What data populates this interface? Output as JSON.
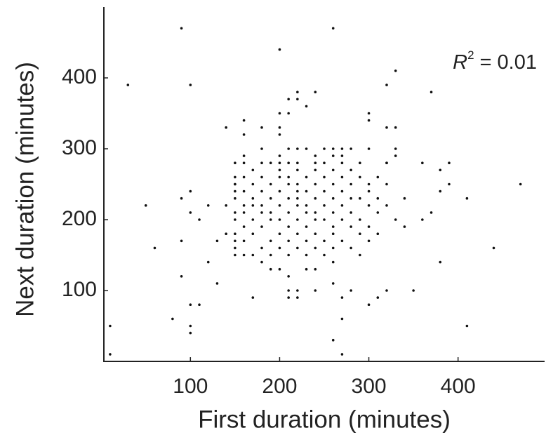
{
  "chart_data": {
    "type": "scatter",
    "xlabel": "First duration (minutes)",
    "ylabel": "Next duration (minutes)",
    "annotation": {
      "symbol": "R",
      "superscript": "2",
      "text": "= 0.01"
    },
    "color": "#111111",
    "xlim": [
      3,
      497
    ],
    "xticks": [
      100,
      200,
      300,
      400
    ],
    "ylim": [
      0,
      500
    ],
    "yticks": [
      100,
      200,
      300,
      400
    ],
    "x": [
      10,
      10,
      30,
      50,
      60,
      80,
      90,
      90,
      90,
      90,
      100,
      100,
      100,
      100,
      100,
      100,
      110,
      110,
      120,
      120,
      130,
      130,
      140,
      140,
      140,
      170,
      200,
      260,
      260,
      270,
      270,
      320,
      330,
      350,
      370,
      380,
      390,
      410,
      410,
      440,
      470,
      360,
      380,
      390,
      340,
      360,
      370,
      380,
      340,
      320,
      310,
      300,
      260,
      280,
      270,
      240,
      210,
      220,
      210,
      220,
      210,
      230,
      240,
      260,
      200,
      190,
      180,
      170,
      160,
      150,
      150,
      150,
      150,
      300,
      300,
      320,
      330,
      320,
      330,
      200,
      210,
      210,
      220,
      220,
      230,
      240,
      200,
      200,
      160,
      160,
      180,
      160,
      150,
      150,
      150,
      150,
      180,
      210,
      220,
      230,
      250,
      260,
      270,
      280,
      300,
      330,
      200,
      240,
      260,
      270,
      160,
      180,
      190,
      200,
      210,
      220,
      240,
      250,
      270,
      290,
      320,
      170,
      200,
      220,
      240,
      260,
      280,
      160,
      180,
      200,
      210,
      230,
      250,
      270,
      290,
      310,
      150,
      170,
      190,
      210,
      220,
      240,
      260,
      280,
      300,
      320,
      160,
      180,
      200,
      220,
      230,
      250,
      270,
      300,
      150,
      170,
      190,
      210,
      220,
      240,
      260,
      280,
      290,
      310,
      160,
      170,
      180,
      200,
      220,
      230,
      250,
      270,
      300,
      320,
      150,
      160,
      180,
      190,
      210,
      230,
      240,
      260,
      280,
      310,
      170,
      190,
      200,
      220,
      240,
      250,
      270,
      290,
      330,
      160,
      180,
      210,
      230,
      260,
      280,
      300,
      150,
      170,
      200,
      220,
      240,
      260,
      290,
      310,
      160,
      190,
      210,
      230,
      250,
      270,
      300,
      180,
      200,
      220,
      240,
      260,
      280,
      190,
      210,
      230,
      250,
      290
    ],
    "values": [
      50,
      10,
      390,
      220,
      160,
      60,
      470,
      230,
      170,
      120,
      390,
      240,
      210,
      80,
      50,
      40,
      80,
      200,
      220,
      140,
      170,
      110,
      330,
      220,
      180,
      90,
      440,
      470,
      30,
      60,
      10,
      390,
      410,
      100,
      380,
      140,
      280,
      230,
      50,
      160,
      250,
      280,
      270,
      250,
      230,
      200,
      210,
      240,
      190,
      100,
      90,
      80,
      110,
      100,
      90,
      100,
      90,
      90,
      100,
      100,
      120,
      130,
      130,
      140,
      130,
      130,
      140,
      150,
      150,
      150,
      160,
      170,
      200,
      350,
      340,
      330,
      330,
      280,
      290,
      350,
      350,
      370,
      380,
      370,
      360,
      380,
      330,
      320,
      340,
      320,
      330,
      290,
      280,
      260,
      250,
      240,
      300,
      300,
      300,
      300,
      300,
      300,
      300,
      300,
      300,
      300,
      290,
      290,
      290,
      290,
      280,
      280,
      280,
      280,
      280,
      280,
      280,
      280,
      280,
      280,
      280,
      270,
      270,
      270,
      270,
      270,
      270,
      260,
      260,
      260,
      260,
      260,
      260,
      260,
      260,
      260,
      250,
      250,
      250,
      250,
      250,
      250,
      250,
      250,
      250,
      250,
      240,
      240,
      240,
      240,
      240,
      240,
      240,
      240,
      230,
      230,
      230,
      230,
      230,
      230,
      230,
      230,
      230,
      230,
      220,
      220,
      220,
      220,
      220,
      220,
      220,
      220,
      220,
      220,
      210,
      210,
      210,
      210,
      210,
      210,
      210,
      210,
      210,
      210,
      200,
      200,
      200,
      200,
      200,
      200,
      200,
      200,
      200,
      190,
      190,
      190,
      190,
      190,
      190,
      190,
      180,
      180,
      180,
      180,
      180,
      180,
      180,
      180,
      170,
      170,
      170,
      170,
      170,
      170,
      170,
      160,
      160,
      160,
      160,
      160,
      160,
      150,
      150,
      150,
      150,
      150
    ]
  }
}
